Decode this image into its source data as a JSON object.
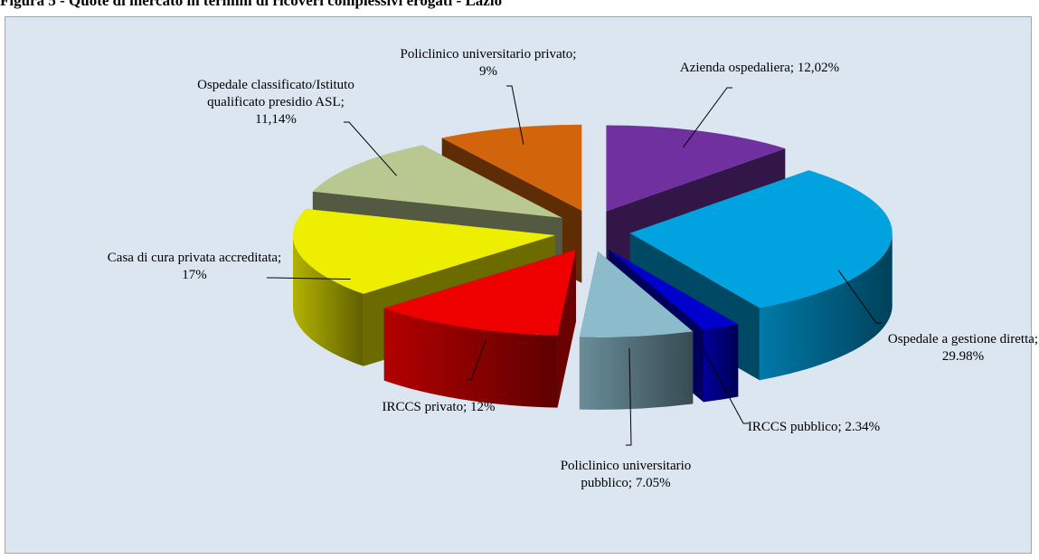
{
  "chart_data": {
    "type": "pie3d",
    "title": "Figura 5 - Quote di mercato in termini di ricoveri complessivi erogati - Lazio",
    "categories": [
      "Azienda ospedaliera;",
      "Ospedale a gestione diretta;",
      "IRCCS pubblico;",
      "Policlinico universitario pubblico;",
      "IRCCS privato;",
      "Casa di cura privata accreditata;",
      "Ospedale classificato/Istituto qualificato presidio ASL;",
      "Policlinico universitario privato;"
    ],
    "values": [
      12.02,
      29.98,
      2.34,
      7.05,
      12,
      17,
      11.14,
      9
    ],
    "value_labels": [
      "12,02%",
      "29.98%",
      "2.34%",
      "7.05%",
      "12%",
      "17%",
      "11,14%",
      "9%"
    ],
    "colors": [
      "#7030a0",
      "#00a2e0",
      "#0000cc",
      "#8cbccc",
      "#ee0000",
      "#eeee00",
      "#b8c890",
      "#d2640c"
    ]
  }
}
